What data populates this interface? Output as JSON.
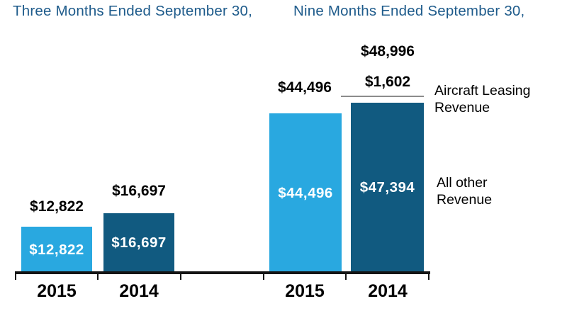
{
  "headers": {
    "three_months": "Three Months Ended September 30,",
    "nine_months": "Nine Months Ended September 30,"
  },
  "legend": {
    "aircraft_leasing": "Aircraft Leasing Revenue",
    "all_other": "All other Revenue"
  },
  "colors": {
    "bar_2015": "#29A8E0",
    "bar_2014": "#115A80",
    "header_text": "#1E5B8B",
    "value_label_text": "#000000",
    "inside_label_text": "#FFFFFF",
    "axis": "#141414",
    "sliver_line": "#8C8C8C"
  },
  "chart_data": {
    "type": "bar",
    "stacked": true,
    "value_prefix": "$",
    "legend_position": "right",
    "grid": false,
    "groups": [
      {
        "title": "Three Months Ended September 30,",
        "categories": [
          "2015",
          "2014"
        ],
        "series": [
          {
            "name": "All other Revenue",
            "values": [
              12822,
              16697
            ]
          },
          {
            "name": "Aircraft Leasing Revenue",
            "values": [
              0,
              0
            ]
          }
        ],
        "totals": [
          12822,
          16697
        ]
      },
      {
        "title": "Nine Months Ended September 30,",
        "categories": [
          "2015",
          "2014"
        ],
        "series": [
          {
            "name": "All other Revenue",
            "values": [
              44496,
              47394
            ]
          },
          {
            "name": "Aircraft Leasing Revenue",
            "values": [
              0,
              1602
            ]
          }
        ],
        "totals": [
          44496,
          48996
        ]
      }
    ],
    "bars": [
      {
        "group": 0,
        "year": "2015",
        "all_other": 12822,
        "aircraft_leasing": 0,
        "total": 12822,
        "total_label": "$12,822",
        "inside_label": "$12,822"
      },
      {
        "group": 0,
        "year": "2014",
        "all_other": 16697,
        "aircraft_leasing": 0,
        "total": 16697,
        "total_label": "$16,697",
        "inside_label": "$16,697"
      },
      {
        "group": 1,
        "year": "2015",
        "all_other": 44496,
        "aircraft_leasing": 0,
        "total": 44496,
        "total_label": "$44,496",
        "inside_label": "$44,496"
      },
      {
        "group": 1,
        "year": "2014",
        "all_other": 47394,
        "aircraft_leasing": 1602,
        "total": 48996,
        "total_label": "$48,996",
        "aircraft_label": "$1,602",
        "inside_label": "$47,394"
      }
    ]
  }
}
